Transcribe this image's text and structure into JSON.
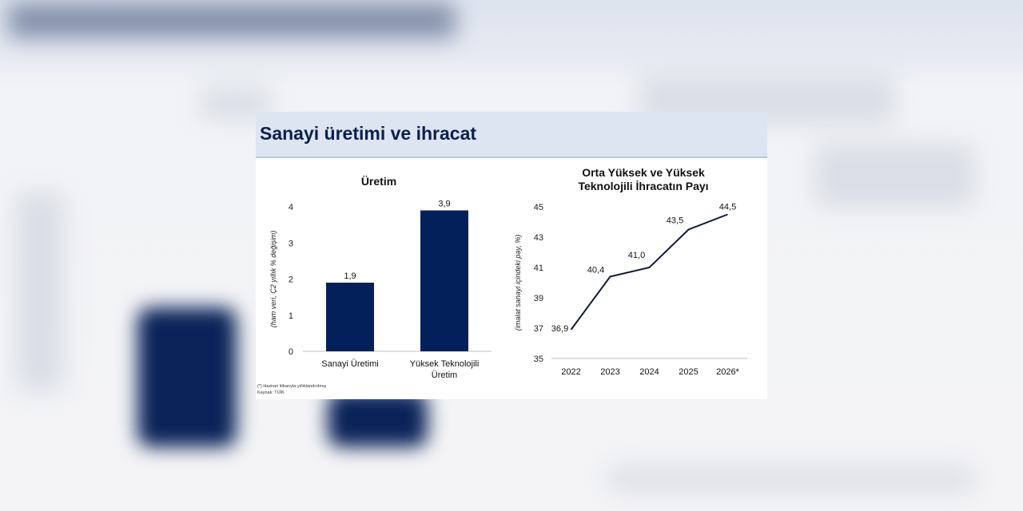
{
  "page": {
    "header_title": "Sanayi üretimi ve ihracat",
    "footnote": "(*) Haziran itibarıyla yıllıklandırılmış",
    "source": "Kaynak: TÜİK"
  },
  "colors": {
    "bar": "#04205a",
    "line": "#0f1b33",
    "header_bg": "#dde5f1",
    "title": "#0b1f4f"
  },
  "chart_data": [
    {
      "type": "bar",
      "title": "Üretim",
      "ylabel": "(ham veri, Ç2 yıllık % değişim)",
      "categories": [
        "Sanayi Üretimi",
        "Yüksek Teknolojili Üretim"
      ],
      "category_lines": [
        [
          "Sanayi Üretimi"
        ],
        [
          "Yüksek Teknolojili",
          "Üretim"
        ]
      ],
      "values": [
        1.9,
        3.9
      ],
      "value_labels": [
        "1,9",
        "3,9"
      ],
      "ylim": [
        0,
        4
      ],
      "yticks": [
        0,
        1,
        2,
        3,
        4
      ],
      "grid": false
    },
    {
      "type": "line",
      "title_lines": [
        "Orta Yüksek ve Yüksek",
        "Teknolojili İhracatın Payı"
      ],
      "ylabel": "(imalat sanayi içindeki pay, %)",
      "x": [
        "2022",
        "2023",
        "2024",
        "2025",
        "2026*"
      ],
      "values": [
        36.9,
        40.4,
        41.0,
        43.5,
        44.5
      ],
      "value_labels": [
        "36,9",
        "40,4",
        "41,0",
        "43,5",
        "44,5"
      ],
      "ylim": [
        35,
        45
      ],
      "yticks": [
        35,
        37,
        39,
        41,
        43,
        45
      ],
      "grid": false
    }
  ]
}
